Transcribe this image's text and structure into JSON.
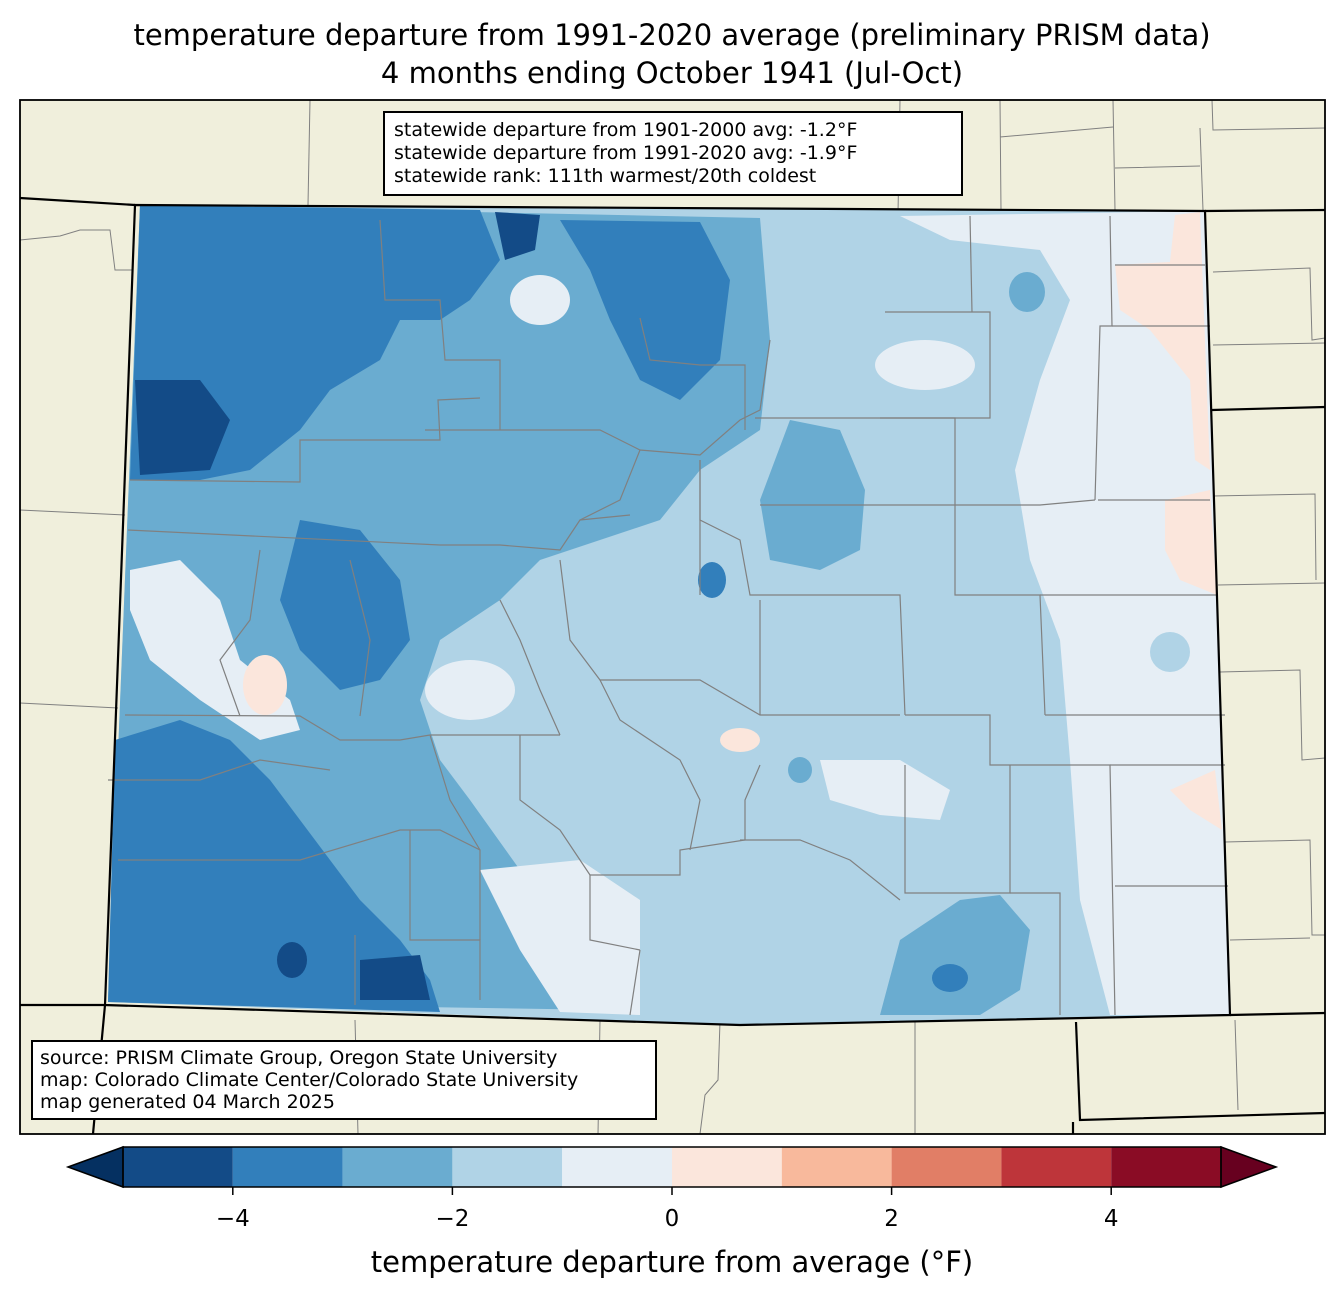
{
  "title": {
    "line1": "temperature departure from 1991-2020 average (preliminary PRISM data)",
    "line2": "4 months ending October 1941 (Jul-Oct)"
  },
  "stats": {
    "line1": "statewide departure from 1901-2000 avg: -1.2°F",
    "line2": "statewide departure from 1991-2020 avg: -1.9°F",
    "line3": "statewide rank: 111th warmest/20th coldest"
  },
  "source": {
    "line1": "source: PRISM Climate Group, Oregon State University",
    "line2": "map: Colorado Climate Center/Colorado State University",
    "line3": "map generated 04 March 2025"
  },
  "colorbar": {
    "label": "temperature departure from average (°F)",
    "ticks": [
      {
        "value": -4,
        "label": "−4"
      },
      {
        "value": -2,
        "label": "−2"
      },
      {
        "value": 0,
        "label": "0"
      },
      {
        "value": 2,
        "label": "2"
      },
      {
        "value": 4,
        "label": "4"
      }
    ],
    "range": [
      -5,
      5
    ],
    "bins": [
      {
        "from": -5,
        "to": -4,
        "color": "#134b87"
      },
      {
        "from": -4,
        "to": -3,
        "color": "#327fbb"
      },
      {
        "from": -3,
        "to": -2,
        "color": "#6aacd0"
      },
      {
        "from": -2,
        "to": -1,
        "color": "#b0d3e6"
      },
      {
        "from": -1,
        "to": 0,
        "color": "#e6eef5"
      },
      {
        "from": 0,
        "to": 1,
        "color": "#fbe6dc"
      },
      {
        "from": 1,
        "to": 2,
        "color": "#f8b99c"
      },
      {
        "from": 2,
        "to": 3,
        "color": "#e17e66"
      },
      {
        "from": 3,
        "to": 4,
        "color": "#be353a"
      },
      {
        "from": 4,
        "to": 5,
        "color": "#8a0c25"
      }
    ],
    "under_color": "#053061",
    "over_color": "#67001f"
  },
  "colors": {
    "land": "#f0efdc",
    "county_border": "#808080",
    "state_border": "#000000"
  }
}
